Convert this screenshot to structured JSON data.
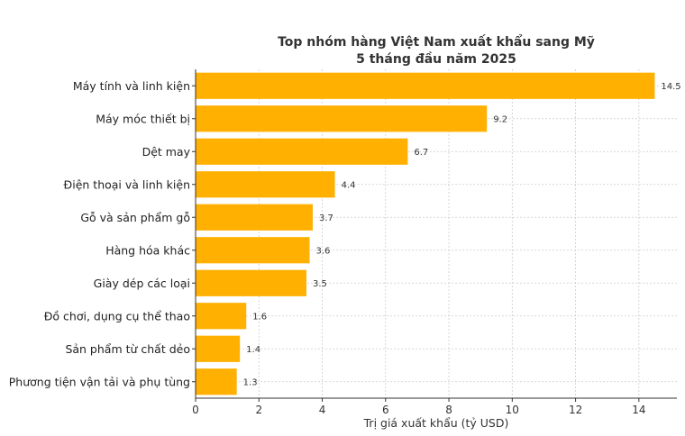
{
  "chart_data": {
    "type": "bar",
    "orientation": "horizontal",
    "title": "Top nhóm hàng Việt Nam xuất khẩu sang Mỹ",
    "subtitle": "5 tháng đầu năm 2025",
    "xlabel": "Trị giá xuất khẩu (tỷ USD)",
    "ylabel": "",
    "xlim": [
      0,
      15.2
    ],
    "xticks": [
      0,
      2,
      4,
      6,
      8,
      10,
      12,
      14
    ],
    "grid": true,
    "bar_color": "#FFB000",
    "categories": [
      "Máy tính và linh kiện",
      "Máy móc thiết bị",
      "Dệt may",
      "Điện thoại và linh kiện",
      "Gỗ và sản phẩm gỗ",
      "Hàng hóa khác",
      "Giày dép các loại",
      "Đồ chơi, dụng cụ thể thao",
      "Sản phẩm từ chất dẻo",
      "Phương tiện vận tải và phụ tùng"
    ],
    "values": [
      14.5,
      9.2,
      6.7,
      4.4,
      3.7,
      3.6,
      3.5,
      1.6,
      1.4,
      1.3
    ]
  }
}
